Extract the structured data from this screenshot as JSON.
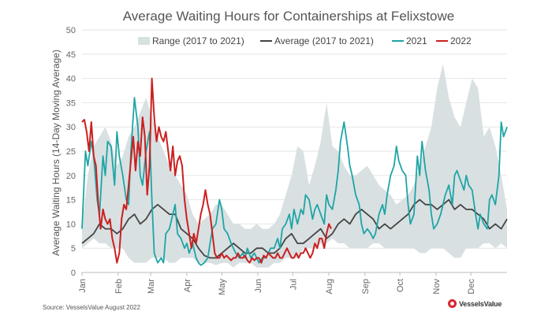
{
  "chart_data": {
    "type": "line",
    "title": "Average Waiting Hours for Containerships at Felixstowe",
    "ylabel": "Average Waiting Hours (14-Day Moving Average)",
    "xlabel": "",
    "ylim": [
      0,
      50
    ],
    "yticks": [
      0,
      5,
      10,
      15,
      20,
      25,
      30,
      35,
      40,
      45,
      50
    ],
    "xlim": [
      0,
      365
    ],
    "x_ticks": [
      {
        "label": "Jan",
        "day": 0
      },
      {
        "label": "Feb",
        "day": 31
      },
      {
        "label": "Mar",
        "day": 59
      },
      {
        "label": "Apr",
        "day": 90
      },
      {
        "label": "May",
        "day": 120
      },
      {
        "label": "Jun",
        "day": 151
      },
      {
        "label": "Jul",
        "day": 181
      },
      {
        "label": "Aug",
        "day": 212
      },
      {
        "label": "Sep",
        "day": 243
      },
      {
        "label": "Oct",
        "day": 273
      },
      {
        "label": "Nov",
        "day": 304
      },
      {
        "label": "Dec",
        "day": 334
      }
    ],
    "legend": {
      "position": "top",
      "entries": [
        {
          "name": "Range (2017 to 2021)",
          "kind": "band",
          "color": "#d9e0e2"
        },
        {
          "name": "Average (2017 to 2021)",
          "kind": "line",
          "color": "#444444"
        },
        {
          "name": "2021",
          "kind": "line",
          "color": "#1ea5a5"
        },
        {
          "name": "2022",
          "kind": "line",
          "color": "#cc1f1f"
        }
      ]
    },
    "range": {
      "name": "Range (2017 to 2021)",
      "color": "#d9e0e2",
      "x": [
        0,
        5,
        10,
        15,
        20,
        25,
        30,
        35,
        40,
        45,
        50,
        55,
        60,
        65,
        70,
        75,
        80,
        85,
        90,
        95,
        100,
        105,
        110,
        115,
        120,
        125,
        130,
        135,
        140,
        145,
        150,
        155,
        160,
        165,
        170,
        175,
        180,
        185,
        190,
        195,
        200,
        205,
        210,
        215,
        220,
        225,
        230,
        235,
        240,
        245,
        250,
        255,
        260,
        265,
        270,
        275,
        280,
        285,
        290,
        295,
        300,
        305,
        310,
        315,
        320,
        325,
        330,
        335,
        340,
        345,
        350,
        355,
        360,
        365
      ],
      "low": [
        5,
        6,
        7,
        6,
        6,
        5,
        5,
        5,
        3,
        2,
        2,
        2,
        3,
        3,
        3,
        2,
        2,
        3,
        3,
        3,
        2,
        2,
        2,
        1.5,
        2,
        2,
        1,
        2,
        2,
        2,
        1,
        1,
        1,
        2,
        2,
        3,
        3,
        3,
        5,
        5,
        5,
        6,
        6,
        7,
        6,
        6,
        5,
        5,
        5,
        5,
        6,
        6,
        5,
        5,
        5,
        5,
        5,
        5,
        4,
        4,
        5,
        5,
        5,
        4,
        3,
        3,
        5,
        5,
        5,
        6,
        6,
        5,
        6,
        5
      ],
      "high": [
        10,
        20,
        26,
        28,
        30,
        27,
        22,
        24,
        28,
        30,
        33,
        36,
        32,
        28,
        25,
        22,
        20,
        18,
        16,
        12,
        10,
        11,
        12,
        14,
        14,
        12,
        10,
        10,
        9,
        9,
        10,
        9,
        9,
        10,
        12,
        16,
        20,
        26,
        25,
        18,
        22,
        27,
        35,
        26,
        25,
        22,
        20,
        20,
        21,
        22,
        20,
        18,
        17,
        16,
        14,
        15,
        16,
        18,
        22,
        26,
        30,
        38,
        43,
        36,
        32,
        30,
        35,
        40,
        38,
        28,
        30,
        26,
        20,
        13
      ]
    },
    "series": [
      {
        "name": "Average (2017 to 2021)",
        "color": "#444444",
        "x": [
          0,
          5,
          10,
          15,
          20,
          25,
          30,
          35,
          40,
          45,
          50,
          55,
          60,
          65,
          70,
          75,
          80,
          85,
          90,
          95,
          100,
          105,
          110,
          115,
          120,
          125,
          130,
          135,
          140,
          145,
          150,
          155,
          160,
          165,
          170,
          175,
          180,
          185,
          190,
          195,
          200,
          205,
          210,
          215,
          220,
          225,
          230,
          235,
          240,
          245,
          250,
          255,
          260,
          265,
          270,
          275,
          280,
          285,
          290,
          295,
          300,
          305,
          310,
          315,
          320,
          325,
          330,
          335,
          340,
          345,
          350,
          355,
          360,
          365
        ],
        "values": [
          6,
          7,
          8,
          10,
          9,
          9,
          8,
          9,
          11,
          12,
          10,
          11,
          13,
          14,
          13,
          12,
          12,
          9,
          8,
          7,
          5,
          3.5,
          3,
          3,
          4,
          5,
          6,
          5,
          4,
          4,
          5,
          5,
          4,
          4,
          5,
          7,
          8,
          6,
          6,
          7,
          8,
          9,
          7,
          8,
          10,
          11,
          10,
          12,
          13,
          12,
          11,
          9,
          10,
          9,
          10,
          11,
          12,
          14,
          15,
          14,
          14,
          13,
          14,
          15,
          13,
          14,
          13,
          13,
          12,
          11,
          9,
          10,
          9,
          11
        ]
      },
      {
        "name": "2021",
        "color": "#1ea5a5",
        "x": [
          0,
          3,
          5,
          8,
          10,
          13,
          15,
          18,
          20,
          22,
          25,
          28,
          30,
          32,
          35,
          38,
          40,
          42,
          45,
          48,
          50,
          52,
          55,
          58,
          60,
          62,
          65,
          68,
          70,
          72,
          75,
          78,
          80,
          82,
          85,
          88,
          90,
          92,
          95,
          98,
          100,
          102,
          105,
          108,
          110,
          112,
          115,
          118,
          120,
          122,
          125,
          128,
          130,
          132,
          135,
          138,
          140,
          142,
          145,
          148,
          150,
          152,
          155,
          158,
          160,
          162,
          165,
          168,
          170,
          172,
          175,
          178,
          180,
          182,
          185,
          188,
          190,
          192,
          195,
          198,
          200,
          202,
          205,
          208,
          210,
          212,
          215,
          218,
          220,
          222,
          225,
          228,
          230,
          232,
          235,
          238,
          240,
          242,
          245,
          248,
          250,
          252,
          255,
          258,
          260,
          262,
          265,
          268,
          270,
          272,
          275,
          278,
          280,
          282,
          285,
          288,
          290,
          292,
          295,
          298,
          300,
          302,
          305,
          308,
          310,
          312,
          315,
          318,
          320,
          322,
          325,
          328,
          330,
          332,
          335,
          338,
          340,
          342,
          345,
          348,
          350,
          352,
          355,
          358,
          360,
          362,
          365
        ],
        "values": [
          9,
          25,
          22,
          27,
          24,
          15,
          12,
          24,
          20,
          27,
          26,
          18,
          29,
          24,
          20,
          15,
          14,
          25,
          36,
          30,
          20,
          18,
          25,
          29,
          15,
          4,
          2,
          3,
          2,
          8,
          9,
          12,
          14,
          8,
          7,
          5,
          6,
          4,
          6,
          3,
          2,
          1.5,
          2,
          3,
          6,
          9,
          10,
          15,
          13,
          9,
          8,
          6,
          5,
          4,
          3,
          4,
          3,
          5,
          3,
          4,
          3,
          2,
          3,
          3,
          4,
          5,
          5,
          7,
          5,
          9,
          10,
          12,
          9,
          13,
          10,
          13,
          12,
          16,
          15,
          11,
          13,
          14,
          12,
          10,
          16,
          14,
          13,
          17,
          21,
          27,
          31,
          26,
          22,
          20,
          16,
          14,
          10,
          8,
          9,
          8,
          7,
          8,
          12,
          14,
          12,
          16,
          20,
          22,
          26,
          23,
          21,
          20,
          14,
          10,
          12,
          24,
          20,
          27,
          21,
          17,
          12,
          9,
          10,
          12,
          14,
          16,
          18,
          14,
          20,
          21,
          19,
          17,
          20,
          18,
          17,
          12,
          9,
          12,
          10,
          9,
          15,
          16,
          14,
          20,
          31,
          28,
          30
        ]
      },
      {
        "name": "2022",
        "color": "#cc1f1f",
        "x": [
          0,
          2,
          4,
          6,
          8,
          10,
          12,
          14,
          16,
          18,
          20,
          22,
          24,
          26,
          28,
          30,
          32,
          34,
          36,
          38,
          40,
          42,
          44,
          46,
          48,
          50,
          52,
          54,
          56,
          58,
          60,
          62,
          64,
          66,
          68,
          70,
          72,
          74,
          76,
          78,
          80,
          82,
          84,
          86,
          88,
          90,
          92,
          94,
          96,
          98,
          100,
          102,
          104,
          106,
          108,
          110,
          112,
          114,
          116,
          118,
          120,
          122,
          124,
          126,
          128,
          130,
          132,
          134,
          136,
          138,
          140,
          142,
          144,
          146,
          148,
          150,
          152,
          154,
          156,
          158,
          160,
          162,
          164,
          166,
          168,
          170,
          172,
          174,
          176,
          178,
          180,
          182,
          184,
          186,
          188,
          190,
          192,
          194,
          196,
          198,
          200,
          202,
          204,
          206,
          208,
          210,
          212,
          214
        ],
        "values": [
          31,
          31.5,
          29,
          25,
          31,
          24,
          22,
          14,
          9,
          13,
          11,
          10,
          11,
          7,
          5,
          2,
          4,
          11,
          14,
          13,
          18,
          23,
          28,
          21,
          27,
          24,
          32,
          28,
          16,
          22,
          40,
          32,
          27,
          30,
          28,
          27,
          29,
          25,
          21,
          26,
          20,
          23,
          24,
          22,
          15,
          11,
          8,
          5,
          8,
          6,
          9,
          12,
          14,
          17,
          14,
          12,
          8,
          4,
          3,
          3,
          4,
          3,
          3.5,
          3,
          2.5,
          3,
          3,
          4,
          3,
          3,
          3.5,
          2.5,
          2,
          3,
          2.5,
          3,
          3,
          2,
          3.5,
          3,
          4,
          3.5,
          3,
          3,
          4,
          3,
          3,
          4,
          5,
          4,
          3,
          3,
          4,
          3,
          4,
          4,
          5,
          4,
          3,
          4,
          6,
          5,
          7,
          7,
          5,
          8,
          10,
          9
        ]
      }
    ]
  },
  "footer": {
    "source": "Source: VesselsValue August 2022",
    "brand": "VesselsValue"
  },
  "colors": {
    "grid": "#e6e6e6",
    "axis_text": "#666666"
  }
}
